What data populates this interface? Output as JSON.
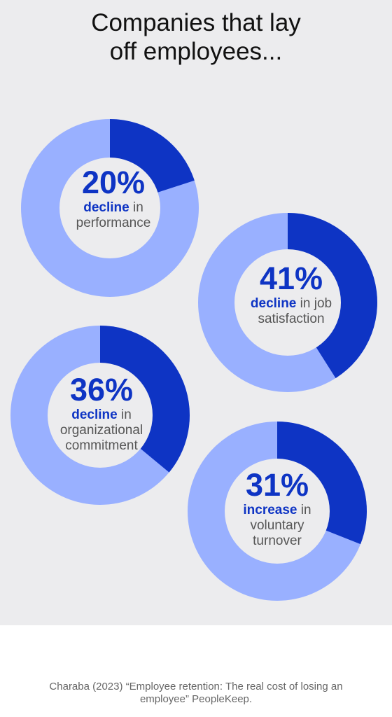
{
  "title": [
    "Companies that lay",
    "off employees..."
  ],
  "colors": {
    "background": "#ececee",
    "accent": "#0e34c4",
    "light": "#99b0ff",
    "hole": "#ececee"
  },
  "chart_data": {
    "type": "pie",
    "variant": "donut",
    "items": [
      {
        "value": 20,
        "percent_label": "20%",
        "keyword": "decline",
        "desc_rest": [
          " in",
          "performance"
        ]
      },
      {
        "value": 41,
        "percent_label": "41%",
        "keyword": "decline",
        "desc_rest": [
          " in job",
          "satisfaction"
        ]
      },
      {
        "value": 36,
        "percent_label": "36%",
        "keyword": "decline",
        "desc_rest": [
          " in",
          "organizational",
          "commitment"
        ]
      },
      {
        "value": 31,
        "percent_label": "31%",
        "keyword": "increase",
        "desc_rest": [
          " in",
          "voluntary",
          "turnover"
        ]
      }
    ]
  },
  "source": [
    "Charaba (2023) “Employee retention: The real cost of losing an",
    "employee” PeopleKeep."
  ]
}
